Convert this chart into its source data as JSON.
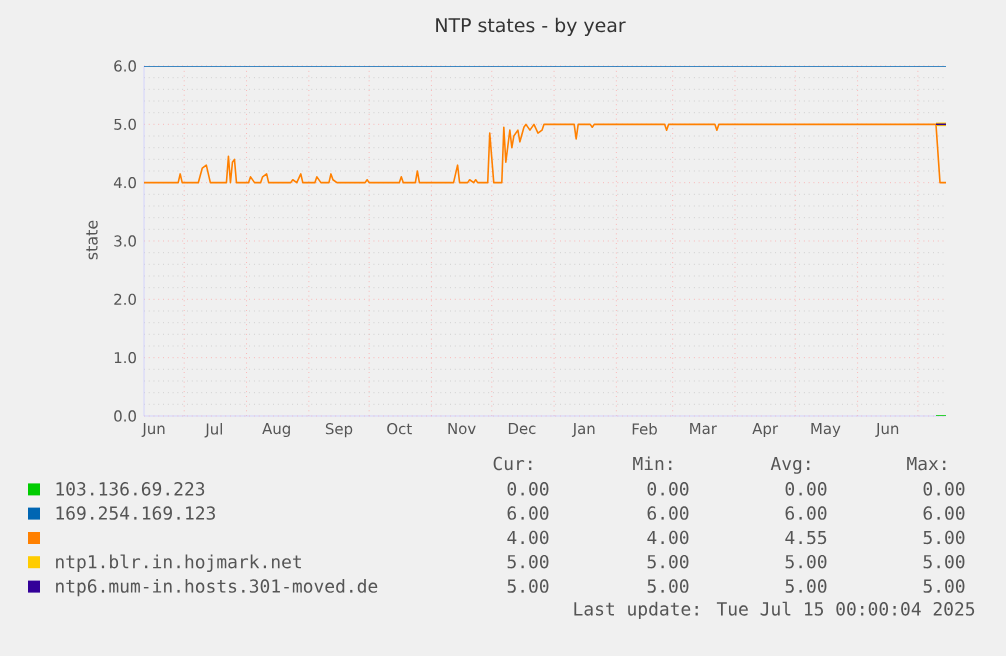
{
  "chart_data": {
    "type": "line",
    "title": "NTP states - by year",
    "ylabel": "state",
    "xlim": [
      "2024-06-11",
      "2025-07-15"
    ],
    "ylim": [
      0,
      6
    ],
    "yticks": [
      {
        "value": 0,
        "label": "0.0"
      },
      {
        "value": 1,
        "label": "1.0"
      },
      {
        "value": 2,
        "label": "2.0"
      },
      {
        "value": 3,
        "label": "3.0"
      },
      {
        "value": 4,
        "label": "4.0"
      },
      {
        "value": 5,
        "label": "5.0"
      },
      {
        "value": 6,
        "label": "6.0"
      }
    ],
    "xticks": [
      {
        "value": "2024-06-16",
        "label": "Jun"
      },
      {
        "value": "2024-07-01",
        "label": null
      },
      {
        "value": "2024-07-16",
        "label": "Jul"
      },
      {
        "value": "2024-08-01",
        "label": null
      },
      {
        "value": "2024-08-16",
        "label": "Aug"
      },
      {
        "value": "2024-09-01",
        "label": null
      },
      {
        "value": "2024-09-16",
        "label": "Sep"
      },
      {
        "value": "2024-10-01",
        "label": null
      },
      {
        "value": "2024-10-16",
        "label": "Oct"
      },
      {
        "value": "2024-11-01",
        "label": null
      },
      {
        "value": "2024-11-16",
        "label": "Nov"
      },
      {
        "value": "2024-12-01",
        "label": null
      },
      {
        "value": "2024-12-16",
        "label": "Dec"
      },
      {
        "value": "2025-01-01",
        "label": null
      },
      {
        "value": "2025-01-16",
        "label": "Jan"
      },
      {
        "value": "2025-02-01",
        "label": null
      },
      {
        "value": "2025-02-15",
        "label": "Feb"
      },
      {
        "value": "2025-03-01",
        "label": null
      },
      {
        "value": "2025-03-16",
        "label": "Mar"
      },
      {
        "value": "2025-04-01",
        "label": null
      },
      {
        "value": "2025-04-16",
        "label": "Apr"
      },
      {
        "value": "2025-05-01",
        "label": null
      },
      {
        "value": "2025-05-16",
        "label": "May"
      },
      {
        "value": "2025-06-01",
        "label": null
      },
      {
        "value": "2025-06-16",
        "label": "Jun"
      },
      {
        "value": "2025-07-01",
        "label": null
      }
    ],
    "grid": true,
    "legend": "bottom",
    "series": [
      {
        "name": "103.136.69.223",
        "color": "#00cc00",
        "x": [
          "2025-07-10",
          "2025-07-15"
        ],
        "values": [
          0,
          0
        ]
      },
      {
        "name": "169.254.169.123",
        "color": "#0066b3",
        "x": [
          "2024-06-11",
          "2025-07-15"
        ],
        "values": [
          6,
          6
        ]
      },
      {
        "color": "#ff8000",
        "x": [
          "2024-06-11",
          "2024-06-28",
          "2024-06-29",
          "2024-06-30",
          "2024-07-08",
          "2024-07-10",
          "2024-07-12",
          "2024-07-13",
          "2024-07-14",
          "2024-07-19",
          "2024-07-22",
          "2024-07-23",
          "2024-07-24",
          "2024-07-25",
          "2024-07-26",
          "2024-07-27",
          "2024-08-02",
          "2024-08-03",
          "2024-08-05",
          "2024-08-08",
          "2024-08-09",
          "2024-08-11",
          "2024-08-12",
          "2024-08-23",
          "2024-08-24",
          "2024-08-26",
          "2024-08-28",
          "2024-08-29",
          "2024-09-04",
          "2024-09-05",
          "2024-09-07",
          "2024-09-11",
          "2024-09-12",
          "2024-09-13",
          "2024-09-15",
          "2024-09-29",
          "2024-09-30",
          "2024-10-01",
          "2024-10-16",
          "2024-10-17",
          "2024-10-18",
          "2024-10-24",
          "2024-10-25",
          "2024-10-26",
          "2024-11-12",
          "2024-11-14",
          "2024-11-15",
          "2024-11-19",
          "2024-11-20",
          "2024-11-22",
          "2024-11-23",
          "2024-11-24",
          "2024-11-29",
          "2024-11-30",
          "2024-12-02",
          "2024-12-06",
          "2024-12-07",
          "2024-12-08",
          "2024-12-10",
          "2024-12-11",
          "2024-12-12",
          "2024-12-14",
          "2024-12-15",
          "2024-12-17",
          "2024-12-18",
          "2024-12-20",
          "2024-12-22",
          "2024-12-24",
          "2024-12-26",
          "2024-12-27",
          "2025-01-11",
          "2025-01-12",
          "2025-01-13",
          "2025-01-19",
          "2025-01-20",
          "2025-01-21",
          "2025-02-25",
          "2025-02-26",
          "2025-02-27",
          "2025-03-22",
          "2025-03-23",
          "2025-03-24",
          "2025-07-10",
          "2025-07-12",
          "2025-07-15"
        ],
        "values": [
          4,
          4,
          4.15,
          4,
          4,
          4.25,
          4.3,
          4.15,
          4,
          4,
          4,
          4.45,
          4,
          4.35,
          4.4,
          4,
          4,
          4.1,
          4,
          4,
          4.1,
          4.15,
          4,
          4,
          4.05,
          4,
          4.15,
          4,
          4,
          4.1,
          4,
          4,
          4.15,
          4.05,
          4,
          4,
          4.05,
          4,
          4,
          4.1,
          4,
          4,
          4.2,
          4,
          4,
          4.3,
          4,
          4,
          4.05,
          4,
          4.05,
          4,
          4,
          4.85,
          4,
          4,
          4.95,
          4.35,
          4.9,
          4.6,
          4.8,
          4.9,
          4.7,
          4.95,
          5,
          4.9,
          5,
          4.85,
          4.9,
          5,
          5,
          4.75,
          5,
          5,
          4.95,
          5,
          5,
          4.9,
          5,
          5,
          4.9,
          5,
          5,
          4,
          4
        ]
      },
      {
        "name": "ntp1.blr.in.hojmark.net",
        "color": "#ffcc00",
        "x": [
          "2025-07-10",
          "2025-07-15"
        ],
        "values": [
          5,
          5
        ]
      },
      {
        "name": "ntp6.mum-in.hosts.301-moved.de",
        "color": "#330099",
        "x": [
          "2025-07-10",
          "2025-07-15"
        ],
        "values": [
          5,
          5
        ]
      }
    ],
    "annotations": [
      "Cur:",
      "Min:",
      "Avg:",
      "Max:",
      "0.00",
      "0.00",
      "0.00",
      "0.00",
      "6.00",
      "6.00",
      "6.00",
      "6.00",
      "4.00",
      "4.00",
      "4.55",
      "5.00",
      "5.00",
      "5.00",
      "5.00",
      "5.00",
      "5.00",
      "5.00",
      "5.00",
      "5.00",
      "Last update: Tue Jul 15 00:00:04 2025"
    ]
  }
}
